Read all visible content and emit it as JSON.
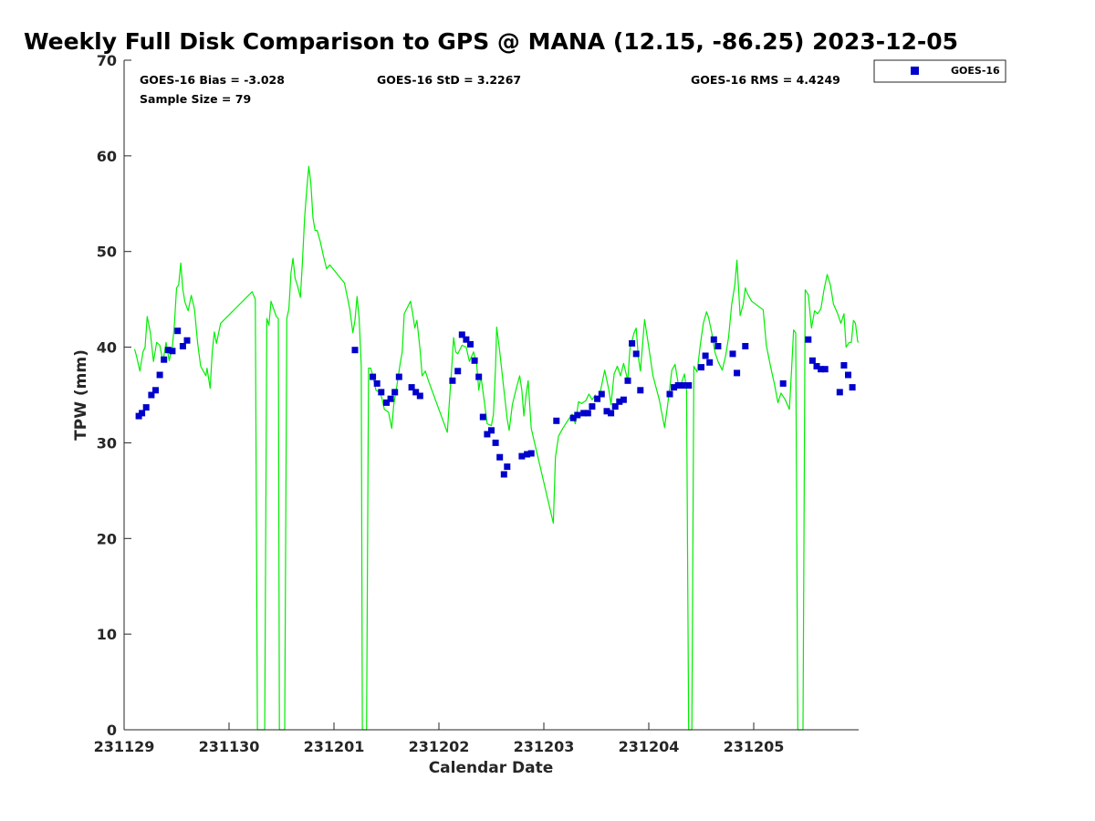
{
  "chart_data": {
    "type": "scatter",
    "title": "Weekly Full Disk Comparison to GPS @ MANA (12.15, -86.25) 2023-12-05",
    "xlabel": "Calendar Date",
    "ylabel": "TPW (mm)",
    "xlim": [
      0,
      7
    ],
    "ylim": [
      0,
      70
    ],
    "x_ticks": [
      {
        "value": 0,
        "label": "231129"
      },
      {
        "value": 1,
        "label": "231130"
      },
      {
        "value": 2,
        "label": "231201"
      },
      {
        "value": 3,
        "label": "231202"
      },
      {
        "value": 4,
        "label": "231203"
      },
      {
        "value": 5,
        "label": "231204"
      },
      {
        "value": 6,
        "label": "231205"
      }
    ],
    "y_ticks": [
      0,
      10,
      20,
      30,
      40,
      50,
      60,
      70
    ],
    "grid": false,
    "legend": {
      "placement": "top-right-outside",
      "entries": [
        "GOES-16"
      ]
    },
    "stats": {
      "bias": "GOES-16 Bias = -3.028",
      "std": "GOES-16 StD = 3.2267",
      "rms": "GOES-16 RMS = 4.4249",
      "sample": "Sample Size = 79"
    },
    "series": [
      {
        "name": "GOES-16",
        "kind": "scatter",
        "marker": "square",
        "color": "#0000cc",
        "points": [
          [
            0.14,
            32.8
          ],
          [
            0.17,
            33.1
          ],
          [
            0.21,
            33.7
          ],
          [
            0.26,
            35
          ],
          [
            0.3,
            35.5
          ],
          [
            0.34,
            37.1
          ],
          [
            0.38,
            38.7
          ],
          [
            0.42,
            39.7
          ],
          [
            0.46,
            39.6
          ],
          [
            0.51,
            41.7
          ],
          [
            0.56,
            40.1
          ],
          [
            0.6,
            40.7
          ],
          [
            2.2,
            39.7
          ],
          [
            2.37,
            36.9
          ],
          [
            2.41,
            36.2
          ],
          [
            2.45,
            35.3
          ],
          [
            2.5,
            34.2
          ],
          [
            2.54,
            34.6
          ],
          [
            2.58,
            35.3
          ],
          [
            2.62,
            36.9
          ],
          [
            2.74,
            35.8
          ],
          [
            2.78,
            35.3
          ],
          [
            2.82,
            34.9
          ],
          [
            3.13,
            36.5
          ],
          [
            3.18,
            37.5
          ],
          [
            3.22,
            41.3
          ],
          [
            3.26,
            40.8
          ],
          [
            3.3,
            40.3
          ],
          [
            3.34,
            38.6
          ],
          [
            3.38,
            36.9
          ],
          [
            3.42,
            32.7
          ],
          [
            3.46,
            30.9
          ],
          [
            3.5,
            31.3
          ],
          [
            3.54,
            30
          ],
          [
            3.58,
            28.5
          ],
          [
            3.62,
            26.7
          ],
          [
            3.65,
            27.5
          ],
          [
            3.79,
            28.6
          ],
          [
            3.84,
            28.8
          ],
          [
            3.88,
            28.9
          ],
          [
            4.12,
            32.3
          ],
          [
            4.28,
            32.6
          ],
          [
            4.32,
            32.9
          ],
          [
            4.38,
            33.1
          ],
          [
            4.42,
            33.1
          ],
          [
            4.46,
            33.8
          ],
          [
            4.51,
            34.6
          ],
          [
            4.55,
            35.1
          ],
          [
            4.6,
            33.3
          ],
          [
            4.64,
            33.1
          ],
          [
            4.68,
            33.8
          ],
          [
            4.72,
            34.3
          ],
          [
            4.76,
            34.5
          ],
          [
            4.8,
            36.5
          ],
          [
            4.84,
            40.4
          ],
          [
            4.88,
            39.3
          ],
          [
            4.92,
            35.5
          ],
          [
            5.2,
            35.1
          ],
          [
            5.24,
            35.8
          ],
          [
            5.28,
            36
          ],
          [
            5.32,
            36
          ],
          [
            5.38,
            36
          ],
          [
            5.5,
            37.9
          ],
          [
            5.54,
            39.1
          ],
          [
            5.58,
            38.4
          ],
          [
            5.62,
            40.8
          ],
          [
            5.66,
            40.1
          ],
          [
            5.8,
            39.3
          ],
          [
            5.84,
            37.3
          ],
          [
            5.92,
            40.1
          ],
          [
            6.28,
            36.2
          ],
          [
            6.52,
            40.8
          ],
          [
            6.56,
            38.6
          ],
          [
            6.6,
            38
          ],
          [
            6.64,
            37.7
          ],
          [
            6.68,
            37.7
          ],
          [
            6.82,
            35.3
          ],
          [
            6.86,
            38.1
          ],
          [
            6.9,
            37.1
          ],
          [
            6.94,
            35.8
          ]
        ]
      },
      {
        "kind": "line",
        "color": "#00ee00",
        "points": [
          [
            0.1,
            39.8
          ],
          [
            0.12,
            39
          ],
          [
            0.15,
            37.5
          ],
          [
            0.18,
            39.5
          ],
          [
            0.2,
            40
          ],
          [
            0.22,
            43.2
          ],
          [
            0.25,
            41.5
          ],
          [
            0.28,
            38.5
          ],
          [
            0.31,
            40.5
          ],
          [
            0.34,
            40.2
          ],
          [
            0.37,
            38.5
          ],
          [
            0.4,
            40.5
          ],
          [
            0.43,
            38.6
          ],
          [
            0.46,
            40
          ],
          [
            0.48,
            42.5
          ],
          [
            0.5,
            46.2
          ],
          [
            0.52,
            46.5
          ],
          [
            0.54,
            48.8
          ],
          [
            0.56,
            46
          ],
          [
            0.58,
            44.7
          ],
          [
            0.61,
            43.8
          ],
          [
            0.64,
            45.4
          ],
          [
            0.67,
            44
          ],
          [
            0.7,
            40.5
          ],
          [
            0.73,
            38
          ],
          [
            0.76,
            37.4
          ],
          [
            0.78,
            37
          ],
          [
            0.79,
            37.8
          ],
          [
            0.82,
            35.7
          ],
          [
            0.84,
            39.5
          ],
          [
            0.86,
            41.6
          ],
          [
            0.88,
            40.4
          ],
          [
            0.92,
            42.5
          ],
          [
            1.22,
            45.8
          ],
          [
            1.25,
            45
          ],
          [
            1.27,
            0
          ],
          [
            1.34,
            0
          ],
          [
            1.36,
            43
          ],
          [
            1.38,
            42.3
          ],
          [
            1.4,
            44.8
          ],
          [
            1.45,
            43.2
          ],
          [
            1.47,
            43
          ],
          [
            1.48,
            0
          ],
          [
            1.53,
            0
          ],
          [
            1.55,
            43
          ],
          [
            1.57,
            44
          ],
          [
            1.59,
            47.8
          ],
          [
            1.61,
            49.3
          ],
          [
            1.63,
            47.2
          ],
          [
            1.65,
            46.5
          ],
          [
            1.68,
            45.2
          ],
          [
            1.7,
            49
          ],
          [
            1.72,
            53.5
          ],
          [
            1.74,
            56.4
          ],
          [
            1.76,
            58.9
          ],
          [
            1.78,
            57.1
          ],
          [
            1.8,
            53.5
          ],
          [
            1.82,
            52.2
          ],
          [
            1.84,
            52.2
          ],
          [
            1.87,
            51
          ],
          [
            1.9,
            49.5
          ],
          [
            1.93,
            48.2
          ],
          [
            1.96,
            48.6
          ],
          [
            2.1,
            46.7
          ],
          [
            2.15,
            44
          ],
          [
            2.18,
            41.5
          ],
          [
            2.2,
            42.8
          ],
          [
            2.22,
            45.3
          ],
          [
            2.24,
            43
          ],
          [
            2.26,
            38
          ],
          [
            2.27,
            0
          ],
          [
            2.31,
            0
          ],
          [
            2.33,
            37.8
          ],
          [
            2.35,
            37.8
          ],
          [
            2.37,
            37
          ],
          [
            2.4,
            35.5
          ],
          [
            2.44,
            35.3
          ],
          [
            2.46,
            34.5
          ],
          [
            2.48,
            33.5
          ],
          [
            2.52,
            33.2
          ],
          [
            2.55,
            31.5
          ],
          [
            2.57,
            34
          ],
          [
            2.6,
            36
          ],
          [
            2.63,
            38.2
          ],
          [
            2.65,
            39.5
          ],
          [
            2.67,
            43.5
          ],
          [
            2.73,
            44.8
          ],
          [
            2.75,
            43.5
          ],
          [
            2.77,
            42
          ],
          [
            2.79,
            42.8
          ],
          [
            2.82,
            39.8
          ],
          [
            2.84,
            37
          ],
          [
            2.87,
            37.5
          ],
          [
            2.9,
            36.5
          ],
          [
            3.08,
            31.1
          ],
          [
            3.12,
            37.5
          ],
          [
            3.14,
            41
          ],
          [
            3.16,
            39.5
          ],
          [
            3.18,
            39.3
          ],
          [
            3.22,
            40.2
          ],
          [
            3.26,
            40
          ],
          [
            3.29,
            38.5
          ],
          [
            3.33,
            39.5
          ],
          [
            3.36,
            38.2
          ],
          [
            3.38,
            35.5
          ],
          [
            3.4,
            37
          ],
          [
            3.43,
            34.5
          ],
          [
            3.46,
            32
          ],
          [
            3.5,
            31.8
          ],
          [
            3.52,
            33
          ],
          [
            3.54,
            38
          ],
          [
            3.55,
            42.1
          ],
          [
            3.58,
            39.5
          ],
          [
            3.62,
            35.5
          ],
          [
            3.65,
            32.5
          ],
          [
            3.67,
            31.3
          ],
          [
            3.7,
            34
          ],
          [
            3.74,
            35.8
          ],
          [
            3.77,
            37
          ],
          [
            3.79,
            35.5
          ],
          [
            3.81,
            32.8
          ],
          [
            3.83,
            35
          ],
          [
            3.85,
            36.5
          ],
          [
            3.88,
            31.5
          ],
          [
            4.09,
            21.6
          ],
          [
            4.11,
            28.5
          ],
          [
            4.14,
            30.7
          ],
          [
            4.18,
            31.5
          ],
          [
            4.22,
            32.2
          ],
          [
            4.27,
            33
          ],
          [
            4.3,
            32
          ],
          [
            4.33,
            34.3
          ],
          [
            4.36,
            34.1
          ],
          [
            4.4,
            34.4
          ],
          [
            4.43,
            35.1
          ],
          [
            4.46,
            34.5
          ],
          [
            4.49,
            35
          ],
          [
            4.52,
            34.3
          ],
          [
            4.55,
            36
          ],
          [
            4.58,
            37.6
          ],
          [
            4.62,
            35.5
          ],
          [
            4.64,
            34
          ],
          [
            4.67,
            37.2
          ],
          [
            4.7,
            38
          ],
          [
            4.73,
            37
          ],
          [
            4.76,
            38.3
          ],
          [
            4.8,
            36.5
          ],
          [
            4.82,
            39.8
          ],
          [
            4.86,
            41.5
          ],
          [
            4.88,
            42
          ],
          [
            4.9,
            39
          ],
          [
            4.92,
            37.5
          ],
          [
            4.96,
            42.9
          ],
          [
            5.0,
            40
          ],
          [
            5.04,
            37
          ],
          [
            5.1,
            34.5
          ],
          [
            5.15,
            31.6
          ],
          [
            5.18,
            34
          ],
          [
            5.22,
            37.6
          ],
          [
            5.25,
            38.2
          ],
          [
            5.28,
            36.2
          ],
          [
            5.3,
            35.9
          ],
          [
            5.34,
            37.2
          ],
          [
            5.36,
            35.5
          ],
          [
            5.38,
            0
          ],
          [
            5.41,
            0
          ],
          [
            5.43,
            38
          ],
          [
            5.46,
            37.4
          ],
          [
            5.49,
            40.2
          ],
          [
            5.52,
            42.5
          ],
          [
            5.55,
            43.7
          ],
          [
            5.57,
            43.1
          ],
          [
            5.6,
            41.5
          ],
          [
            5.63,
            39.5
          ],
          [
            5.66,
            38.5
          ],
          [
            5.7,
            37.6
          ],
          [
            5.73,
            39
          ],
          [
            5.76,
            41
          ],
          [
            5.79,
            44.5
          ],
          [
            5.82,
            46.5
          ],
          [
            5.84,
            49.1
          ],
          [
            5.87,
            43.3
          ],
          [
            5.9,
            44.5
          ],
          [
            5.92,
            46.2
          ],
          [
            5.94,
            45.6
          ],
          [
            5.96,
            45.2
          ],
          [
            5.98,
            44.8
          ],
          [
            6.09,
            43.9
          ],
          [
            6.12,
            40.2
          ],
          [
            6.16,
            38
          ],
          [
            6.2,
            36
          ],
          [
            6.23,
            34.2
          ],
          [
            6.26,
            35.2
          ],
          [
            6.3,
            34.5
          ],
          [
            6.34,
            33.5
          ],
          [
            6.36,
            37.5
          ],
          [
            6.38,
            41.8
          ],
          [
            6.4,
            41.5
          ],
          [
            6.42,
            0
          ],
          [
            6.47,
            0
          ],
          [
            6.49,
            46
          ],
          [
            6.52,
            45.5
          ],
          [
            6.55,
            42
          ],
          [
            6.58,
            43.8
          ],
          [
            6.61,
            43.5
          ],
          [
            6.64,
            44
          ],
          [
            6.67,
            46
          ],
          [
            6.7,
            47.6
          ],
          [
            6.73,
            46.5
          ],
          [
            6.76,
            44.5
          ],
          [
            6.8,
            43.5
          ],
          [
            6.83,
            42.5
          ],
          [
            6.86,
            43.5
          ],
          [
            6.88,
            40
          ],
          [
            6.91,
            40.5
          ],
          [
            6.93,
            40.5
          ],
          [
            6.95,
            42.8
          ],
          [
            6.97,
            42.5
          ],
          [
            6.99,
            40.6
          ],
          [
            7.0,
            40.5
          ]
        ]
      }
    ]
  }
}
